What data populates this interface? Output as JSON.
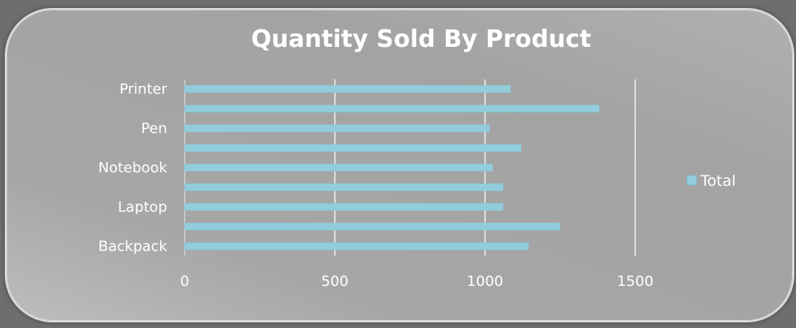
{
  "chart_data": {
    "type": "bar",
    "orientation": "horizontal",
    "title": "Quantity Sold By Product",
    "categories": [
      "Printer",
      "",
      "Pen",
      "",
      "Notebook",
      "",
      "Laptop",
      "",
      "Backpack"
    ],
    "series": [
      {
        "name": "Total",
        "values": [
          1085,
          1380,
          1015,
          1120,
          1025,
          1060,
          1060,
          1250,
          1145
        ],
        "color": "#92cddc"
      }
    ],
    "xlim": [
      0,
      1500
    ],
    "xticks": [
      "0",
      "500",
      "1000",
      "1500"
    ],
    "grid": true,
    "legend": "right"
  }
}
